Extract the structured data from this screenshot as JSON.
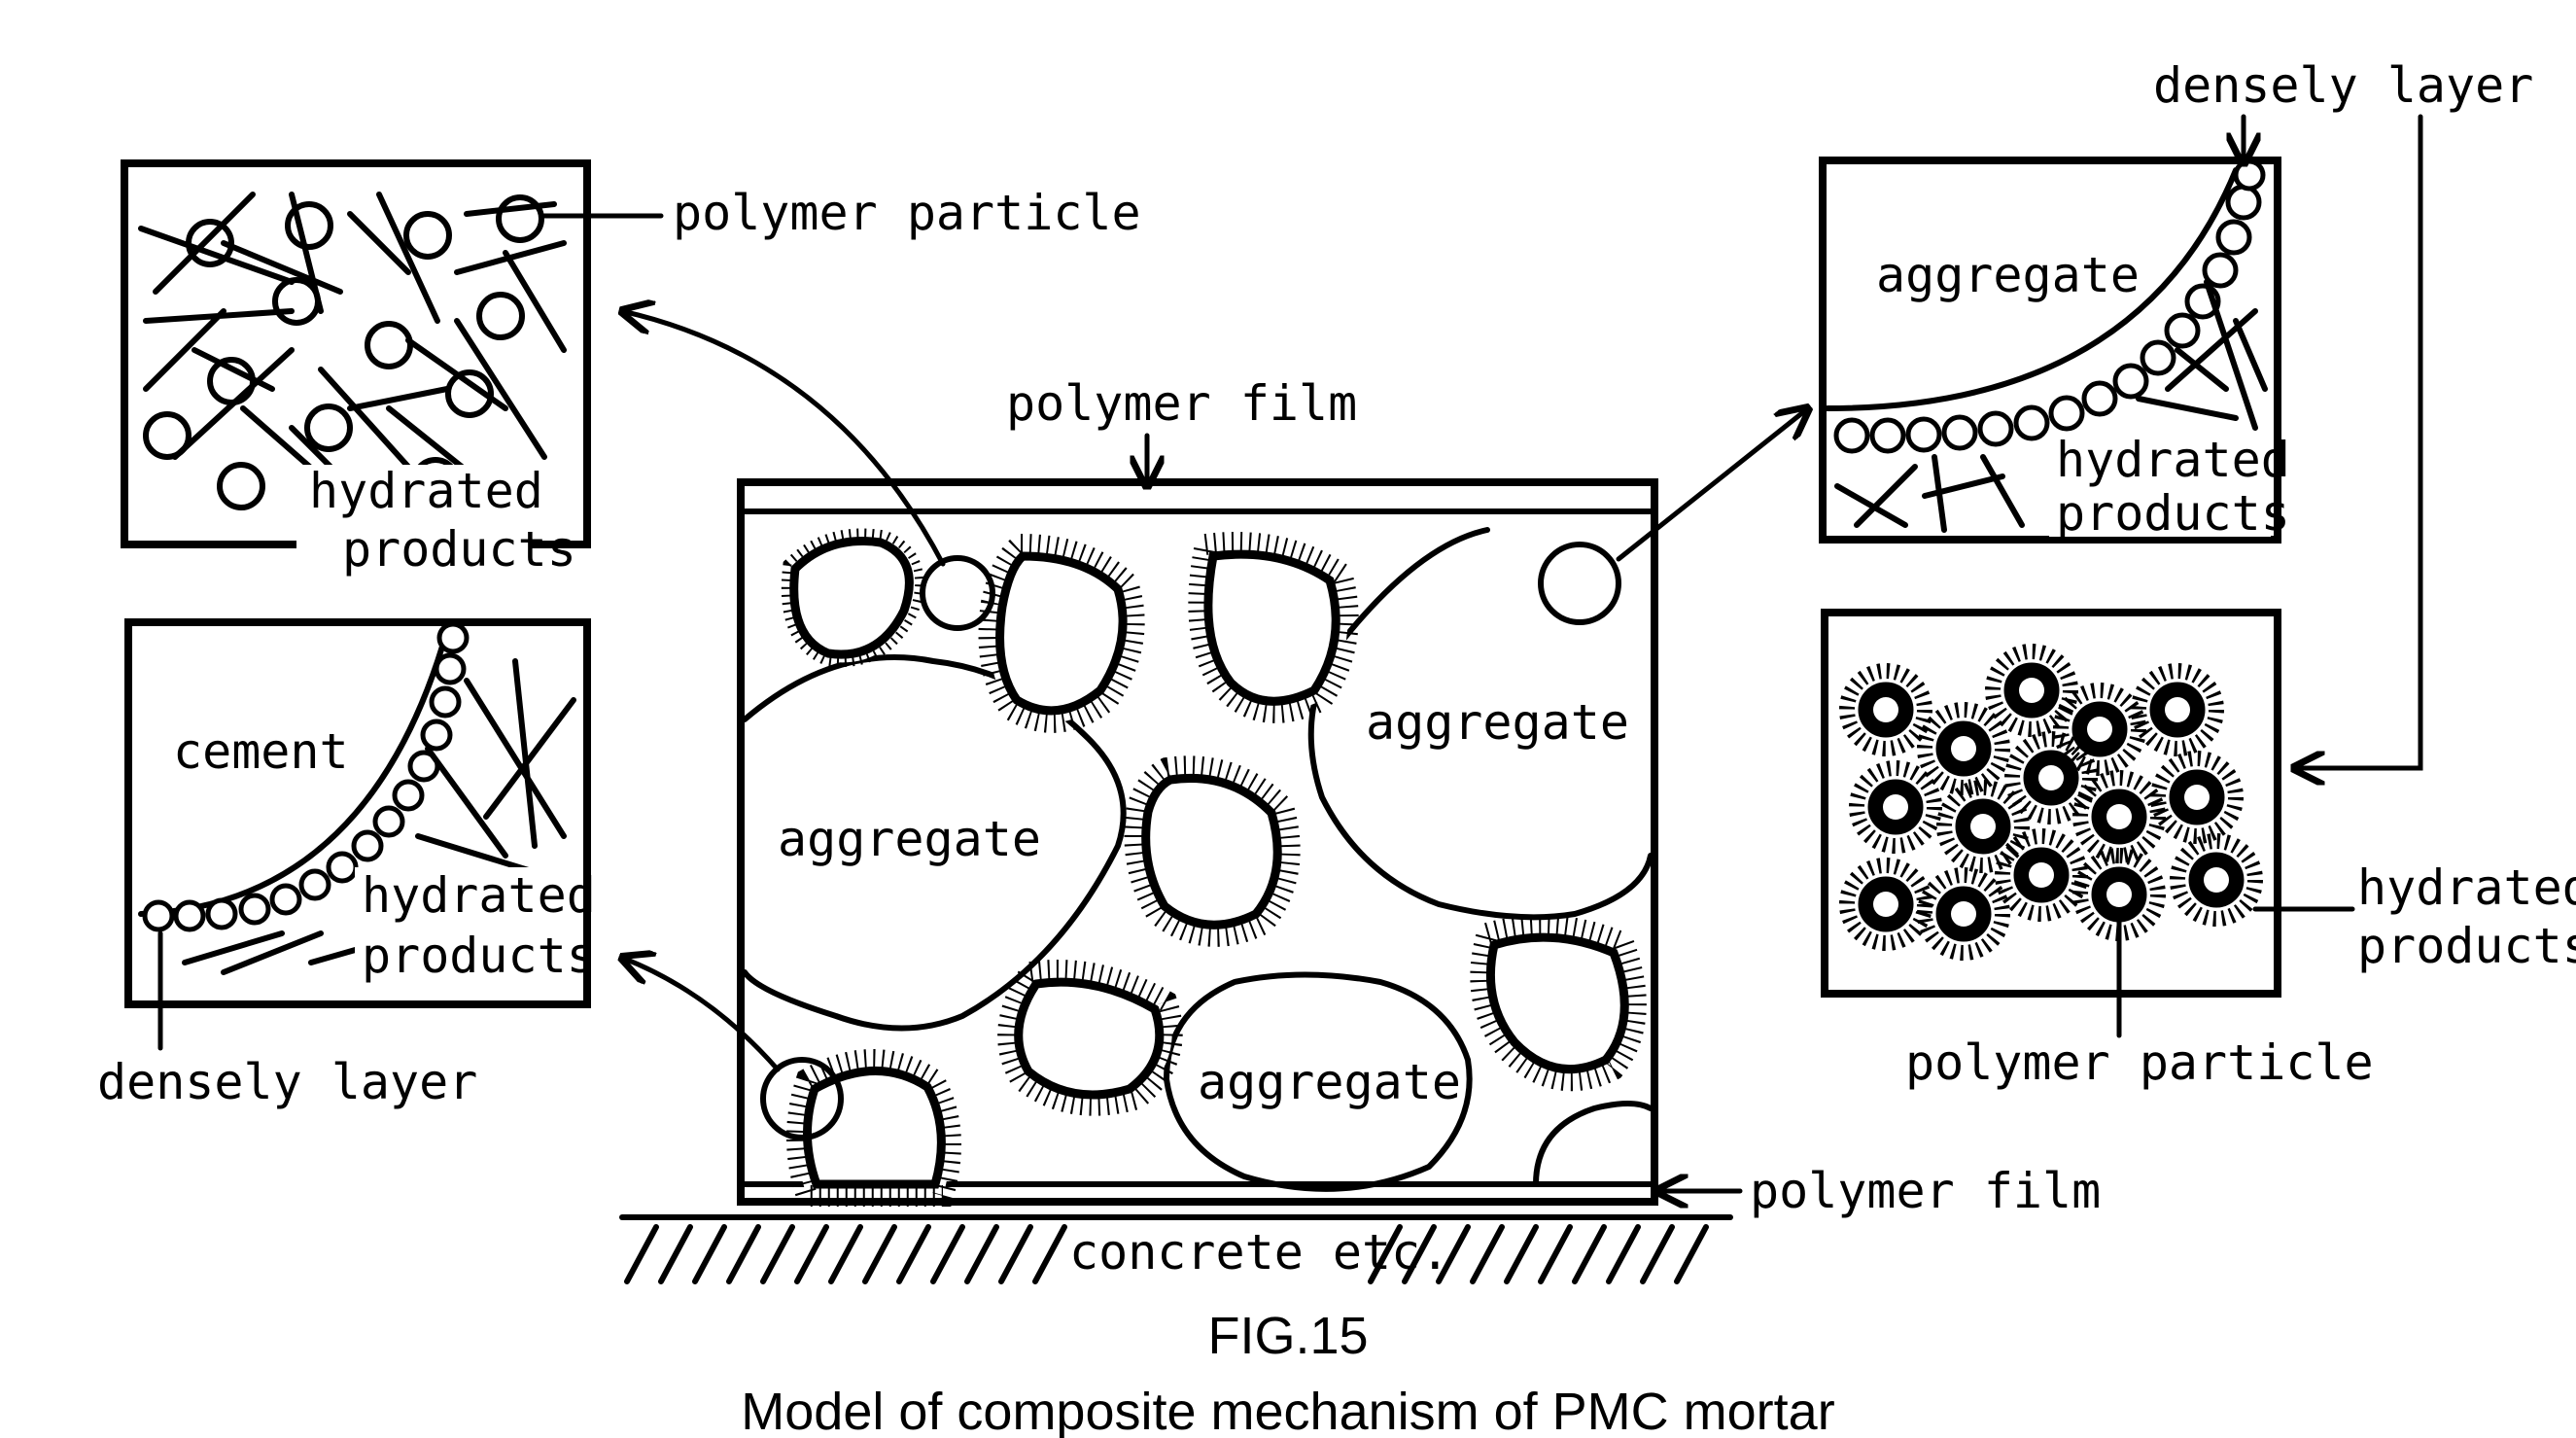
{
  "labels": {
    "polymer_particle_top": "polymer particle",
    "hydrated_top_l1": "hydrated",
    "hydrated_top_l2": "products",
    "cement": "cement",
    "hydrated_mid_l1": "hydrated",
    "hydrated_mid_l2": "products",
    "densely_layer_left": "densely layer",
    "polymer_film_top": "polymer film",
    "aggregate_main_left": "aggregate",
    "aggregate_main_right": "aggregate",
    "aggregate_main_bottom": "aggregate",
    "concrete": "concrete etc.",
    "polymer_film_bottom": "polymer film",
    "densely_layer_right": "densely layer",
    "aggregate_inset": "aggregate",
    "hydrated_right_l1": "hydrated",
    "hydrated_right_l2": "products",
    "hydrated_far_l1": "hydrated",
    "hydrated_far_l2": "products",
    "polymer_particle_bottom": "polymer particle"
  },
  "caption": {
    "fig": "FIG.15",
    "title": "Model of composite mechanism of PMC mortar"
  }
}
